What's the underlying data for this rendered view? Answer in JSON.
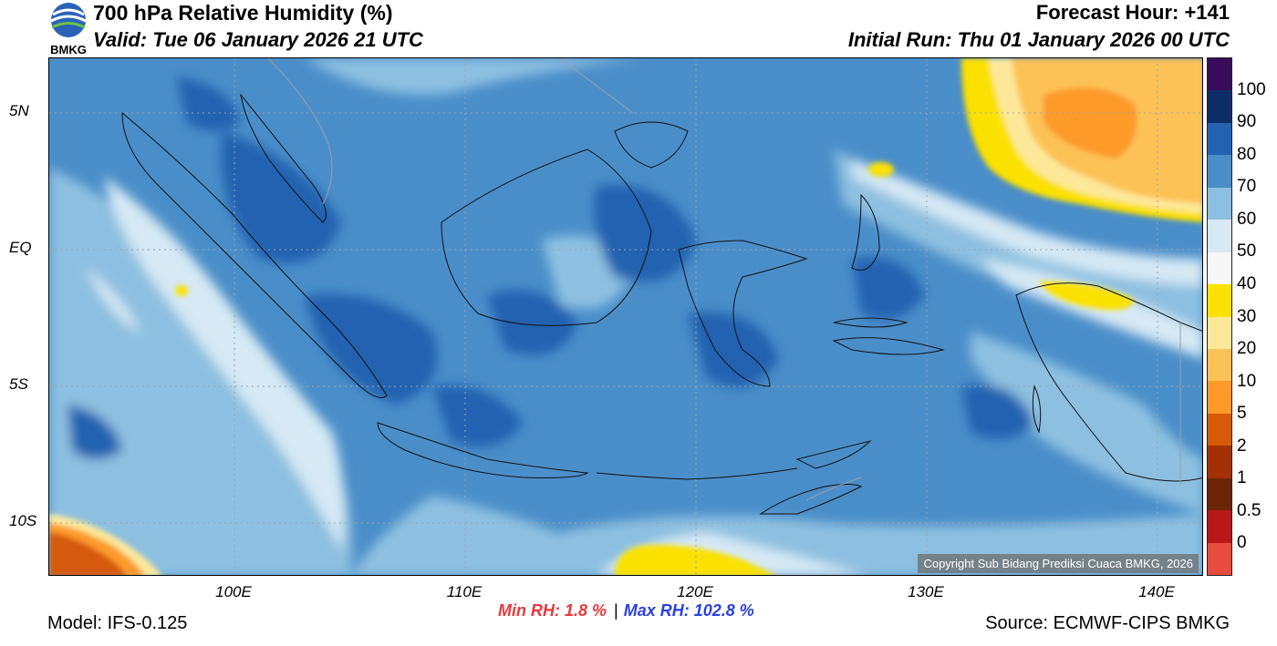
{
  "header": {
    "title": "700 hPa Relative Humidity (%)",
    "valid": "Valid: Tue 06 January 2026 21 UTC",
    "forecast_hour": "Forecast Hour: +141",
    "initial_run": "Initial Run: Thu 01 January 2026 00 UTC",
    "logo_text": "BMKG"
  },
  "map": {
    "lat_labels": [
      "5N",
      "EQ",
      "5S",
      "10S"
    ],
    "lon_labels": [
      "100E",
      "110E",
      "120E",
      "130E",
      "140E"
    ],
    "copyright": "Copyright Sub Bidang Prediksi Cuaca BMKG, 2026"
  },
  "colorbar": {
    "labels": [
      "100",
      "90",
      "80",
      "70",
      "60",
      "50",
      "40",
      "30",
      "20",
      "10",
      "5",
      "2",
      "1",
      "0.5",
      "0"
    ],
    "colors": [
      "#3a0c5c",
      "#0e2d66",
      "#2362b0",
      "#4a8ec9",
      "#8dc0e0",
      "#d6e9f4",
      "#f7f7f7",
      "#fbe100",
      "#fde89a",
      "#fdc256",
      "#fd9a2a",
      "#d65a07",
      "#a33006",
      "#6b2406",
      "#b81818",
      "#e84c3d"
    ]
  },
  "footer": {
    "model": "Model: IFS-0.125",
    "min_rh": "Min RH:   1.8 %",
    "max_rh": "Max RH: 102.8 %",
    "source": "Source: ECMWF-CIPS BMKG"
  }
}
